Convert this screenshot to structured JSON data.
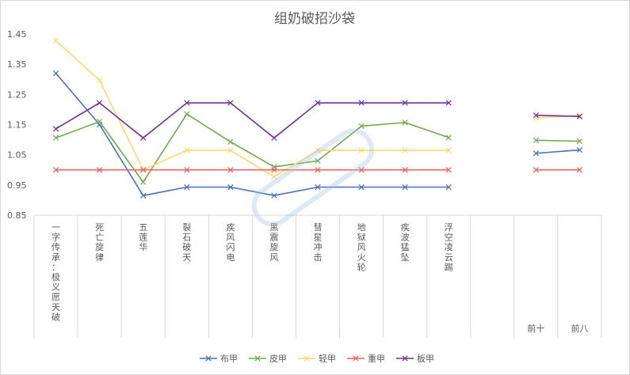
{
  "chart_data": {
    "type": "line",
    "title": "组奶破招沙袋",
    "categories": [
      "一字传承：极义愿天破",
      "死亡旋律",
      "五莲华",
      "裂石破天",
      "疾风闪电",
      "黑震旋风",
      "彗星冲击",
      "地狱风火轮",
      "疾波猛坠",
      "浮空凌云踢",
      "",
      "前十",
      "前八"
    ],
    "y_ticks": [
      "1.45",
      "1.35",
      "1.25",
      "1.15",
      "1.05",
      "0.95",
      "0.85"
    ],
    "ylim": [
      0.85,
      1.45
    ],
    "grid": false,
    "legend_position": "bottom",
    "series": [
      {
        "name": "布甲",
        "color": "#4472c4",
        "values": [
          1.32,
          1.15,
          0.915,
          0.943,
          0.943,
          0.915,
          0.943,
          0.943,
          0.943,
          0.943,
          null,
          1.055,
          1.066
        ]
      },
      {
        "name": "皮甲",
        "color": "#70ad47",
        "values": [
          1.106,
          1.16,
          0.96,
          1.185,
          1.093,
          1.01,
          1.03,
          1.145,
          1.157,
          1.107,
          null,
          1.098,
          1.095
        ]
      },
      {
        "name": "轻甲",
        "color": "#ffd966",
        "values": [
          1.428,
          1.297,
          1.0,
          1.065,
          1.065,
          0.977,
          1.065,
          1.065,
          1.065,
          1.065,
          null,
          1.172,
          1.18
        ]
      },
      {
        "name": "重甲",
        "color": "#ff5b5b",
        "values": [
          1.0,
          1.0,
          1.0,
          1.0,
          1.0,
          1.0,
          1.0,
          1.0,
          1.0,
          1.0,
          null,
          1.0,
          1.0
        ]
      },
      {
        "name": "板甲",
        "color": "#7030a0",
        "values": [
          1.136,
          1.222,
          1.106,
          1.222,
          1.222,
          1.106,
          1.222,
          1.222,
          1.222,
          1.222,
          null,
          1.181,
          1.177
        ]
      }
    ]
  }
}
